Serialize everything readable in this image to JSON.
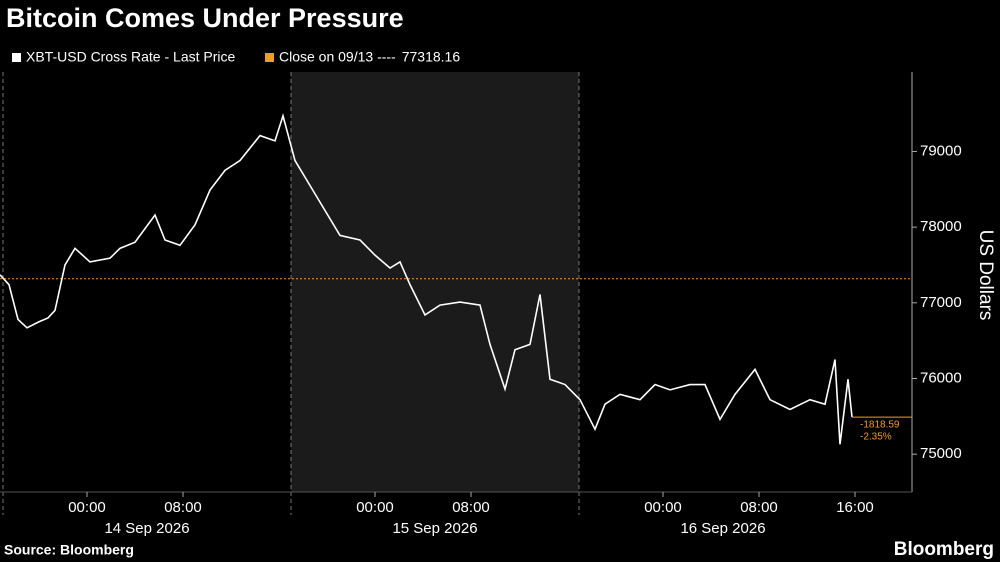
{
  "chart_data": {
    "type": "line",
    "title": "Bitcoin Comes Under Pressure",
    "series": [
      {
        "name": "XBT-USD Cross Rate - Last Price",
        "color": "#ffffff",
        "values": [
          77370,
          77240,
          76780,
          76670,
          76750,
          76800,
          76900,
          77500,
          77720,
          77540,
          77590,
          77720,
          77800,
          78160,
          77830,
          77760,
          78030,
          78490,
          78750,
          78880,
          79210,
          79140,
          79470,
          78880,
          78550,
          78220,
          77890,
          77830,
          77630,
          77460,
          77540,
          77240,
          76840,
          76970,
          77010,
          76970,
          76450,
          75860,
          76380,
          76450,
          77110,
          75990,
          75920,
          75720,
          75330,
          75660,
          75790,
          75720,
          75920,
          75850,
          75920,
          75920,
          75460,
          75790,
          76120,
          75720,
          75590,
          75720,
          75660,
          76250,
          75130,
          75990,
          75490
        ]
      }
    ],
    "x": [
      "2026-09-13 16:45",
      "2026-09-13 17:30",
      "2026-09-13 18:15",
      "2026-09-13 19:00",
      "2026-09-13 20:00",
      "2026-09-13 20:45",
      "2026-09-13 21:20",
      "2026-09-13 22:10",
      "2026-09-13 23:00",
      "2026-09-14 00:15",
      "2026-09-14 01:55",
      "2026-09-14 02:45",
      "2026-09-14 04:00",
      "2026-09-14 05:40",
      "2026-09-14 06:30",
      "2026-09-14 07:45",
      "2026-09-14 09:00",
      "2026-09-14 10:15",
      "2026-09-14 11:30",
      "2026-09-14 12:45",
      "2026-09-14 14:25",
      "2026-09-14 15:40",
      "2026-09-14 16:20",
      "2026-09-14 17:20",
      "2026-09-14 18:35",
      "2026-09-14 19:50",
      "2026-09-14 21:05",
      "2026-09-14 22:45",
      "2026-09-15 00:00",
      "2026-09-15 01:15",
      "2026-09-15 02:05",
      "2026-09-15 02:55",
      "2026-09-15 04:10",
      "2026-09-15 05:25",
      "2026-09-15 07:05",
      "2026-09-15 08:45",
      "2026-09-15 09:35",
      "2026-09-15 10:50",
      "2026-09-15 11:40",
      "2026-09-15 12:55",
      "2026-09-15 13:45",
      "2026-09-15 14:35",
      "2026-09-15 15:50",
      "2026-09-15 17:05",
      "2026-09-15 18:20",
      "2026-09-15 19:10",
      "2026-09-15 20:25",
      "2026-09-15 22:05",
      "2026-09-15 23:20",
      "2026-09-16 00:35",
      "2026-09-16 02:15",
      "2026-09-16 03:30",
      "2026-09-16 04:45",
      "2026-09-16 06:00",
      "2026-09-16 07:40",
      "2026-09-16 08:55",
      "2026-09-16 10:35",
      "2026-09-16 12:15",
      "2026-09-16 13:30",
      "2026-09-16 14:20",
      "2026-09-16 14:45",
      "2026-09-16 15:25",
      "2026-09-16 15:45"
    ],
    "xlim": [
      "2026-09-13 16:45",
      "2026-09-16 20:45"
    ],
    "xticks": [
      {
        "value": "2026-09-14 00:00",
        "label": "00:00"
      },
      {
        "value": "2026-09-14 08:00",
        "label": "08:00"
      },
      {
        "value": "2026-09-15 00:00",
        "label": "00:00"
      },
      {
        "value": "2026-09-15 08:00",
        "label": "08:00"
      },
      {
        "value": "2026-09-16 00:00",
        "label": "00:00"
      },
      {
        "value": "2026-09-16 08:00",
        "label": "08:00"
      },
      {
        "value": "2026-09-16 16:00",
        "label": "16:00"
      }
    ],
    "sessions": [
      {
        "label": "14 Sep 2026",
        "start": "2026-09-13 17:00",
        "end": "2026-09-14 17:00"
      },
      {
        "label": "15 Sep 2026",
        "start": "2026-09-14 17:00",
        "end": "2026-09-15 17:00",
        "shaded": true
      },
      {
        "label": "16 Sep 2026",
        "start": "2026-09-15 17:00",
        "end": "2026-09-16 17:00"
      }
    ],
    "reference": {
      "name": "Close on 09/13 ----",
      "value": 77318.16,
      "color": "#f39c1f"
    },
    "annotations": [
      {
        "value": -1818.59,
        "label": "-1818.59"
      },
      {
        "value": -2.35,
        "label": "-2.35%"
      }
    ],
    "ylim": [
      74500,
      80050
    ],
    "yticks": [
      75000,
      76000,
      77000,
      78000,
      79000
    ],
    "y_label": "US Dollars",
    "source": "Source: Bloomberg",
    "brand": "Bloomberg"
  }
}
